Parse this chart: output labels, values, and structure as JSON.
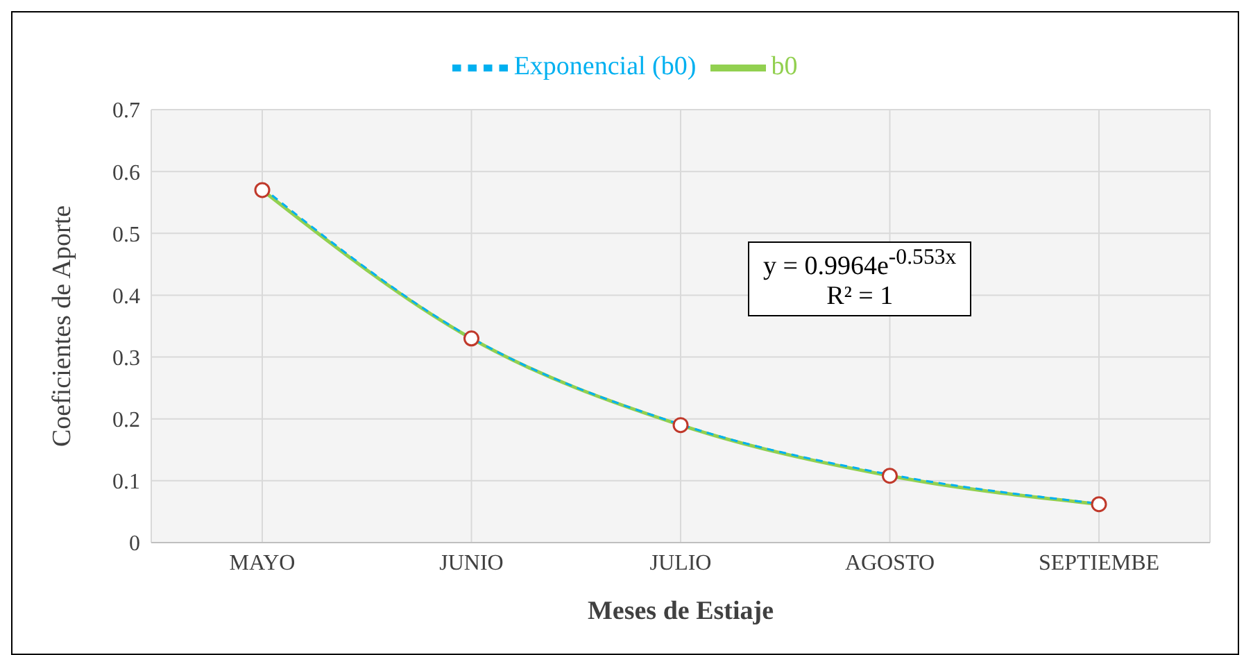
{
  "chart_data": {
    "type": "line",
    "xlabel": "Meses de Estiaje",
    "ylabel": "Coeficientes de Aporte",
    "categories": [
      "MAYO",
      "JUNIO",
      "JULIO",
      "AGOSTO",
      "SEPTIEMBE"
    ],
    "series": [
      {
        "name": "b0",
        "color": "#92d050",
        "values": [
          0.57,
          0.33,
          0.19,
          0.108,
          0.062
        ],
        "marker": "circle",
        "line_style": "solid"
      },
      {
        "name": "Exponencial (b0)",
        "color": "#00b0f0",
        "values": [
          0.574,
          0.331,
          0.191,
          0.11,
          0.063
        ],
        "marker": "none",
        "line_style": "dashed"
      }
    ],
    "ylim": [
      0,
      0.7
    ],
    "yticks": [
      0,
      0.1,
      0.2,
      0.3,
      0.4,
      0.5,
      0.6,
      0.7
    ],
    "grid": true,
    "legend": "top",
    "annotations": [
      "y = 0.9964e$^{-0.553x}$",
      "R² = 1"
    ]
  }
}
